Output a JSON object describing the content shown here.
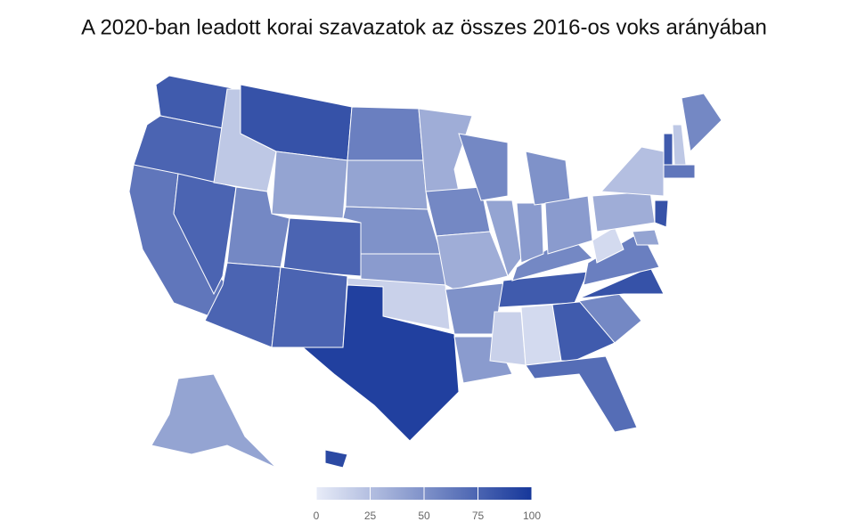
{
  "chart_data": {
    "type": "choropleth",
    "title": "A 2020-ban leadott korai szavazatok az összes 2016-os voks arányában",
    "values": [
      80,
      75,
      65,
      75,
      20,
      85,
      40,
      55,
      75,
      75,
      75,
      60,
      40,
      50,
      45,
      15,
      95,
      35,
      55,
      35,
      50,
      45,
      55,
      40,
      15,
      10,
      80,
      55,
      45,
      50,
      45,
      80,
      70,
      55,
      85,
      60,
      10,
      35,
      25,
      80,
      20,
      55,
      65,
      85,
      40,
      40,
      90
    ],
    "color_range": [
      "#e8ecf8",
      "#16379a"
    ],
    "colorlim": [
      0,
      100
    ],
    "colorticks": [
      0,
      25,
      50,
      75,
      100
    ]
  }
}
